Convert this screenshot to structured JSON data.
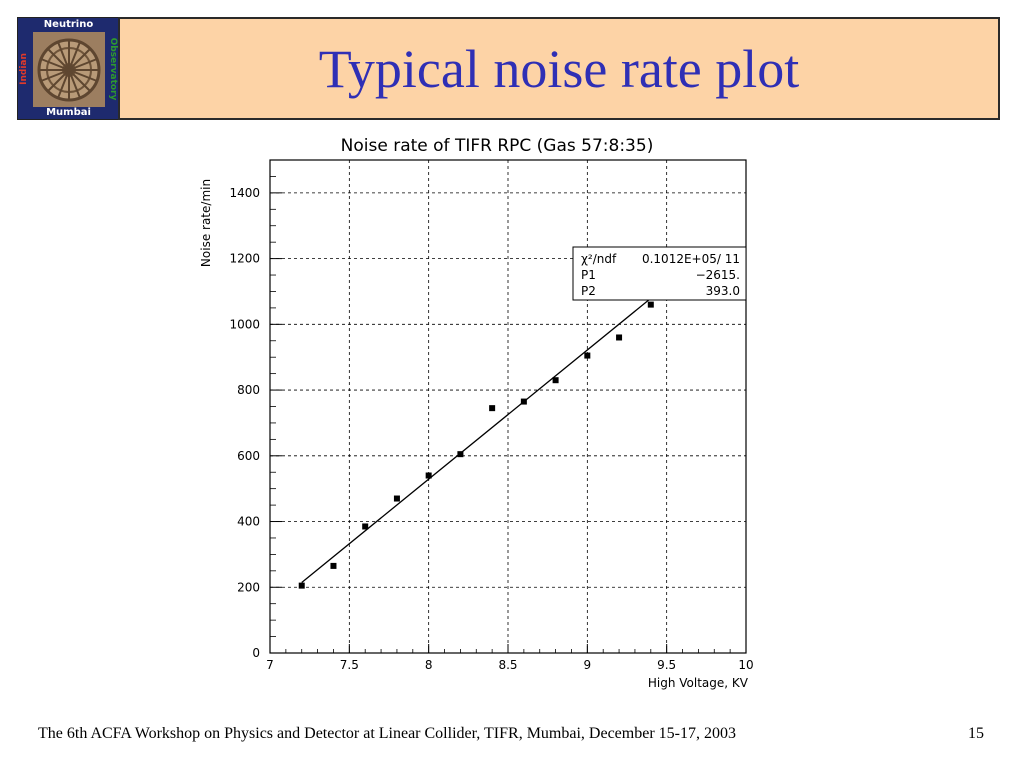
{
  "logo": {
    "top": "Neutrino",
    "left": "Indian",
    "right": "Observatory",
    "bottom": "Mumbai"
  },
  "slide": {
    "title": "Typical noise rate plot",
    "footer": "The 6th ACFA Workshop on Physics and Detector at Linear Collider, TIFR, Mumbai, December 15-17, 2003",
    "page_number": "15"
  },
  "chart_data": {
    "type": "scatter",
    "title": "Noise rate of TIFR RPC (Gas 57:8:35)",
    "xlabel": "High Voltage, KV",
    "ylabel": "Noise rate/min",
    "xlim": [
      7,
      10
    ],
    "ylim": [
      0,
      1500
    ],
    "grid": true,
    "x_ticks": [
      "7",
      "7.5",
      "8",
      "8.5",
      "9",
      "9.5",
      "10"
    ],
    "y_ticks": [
      "0",
      "200",
      "400",
      "600",
      "800",
      "1000",
      "1200",
      "1400"
    ],
    "series": [
      {
        "x": [
          7.2,
          7.4,
          7.6,
          7.8,
          8.0,
          8.2,
          8.4,
          8.6,
          8.8,
          9.0,
          9.2,
          9.4
        ],
        "y": [
          205,
          265,
          385,
          470,
          540,
          605,
          745,
          765,
          830,
          905,
          960,
          1060
        ]
      }
    ],
    "fit_line": {
      "x_start": 7.2,
      "x_end": 9.58,
      "intercept": -2615,
      "slope": 393.0
    },
    "stats_box": {
      "rows": [
        {
          "label": "χ²/ndf",
          "value": "0.1012E+05/   11"
        },
        {
          "label": "P1",
          "value": "−2615."
        },
        {
          "label": "P2",
          "value": "393.0"
        }
      ]
    }
  }
}
